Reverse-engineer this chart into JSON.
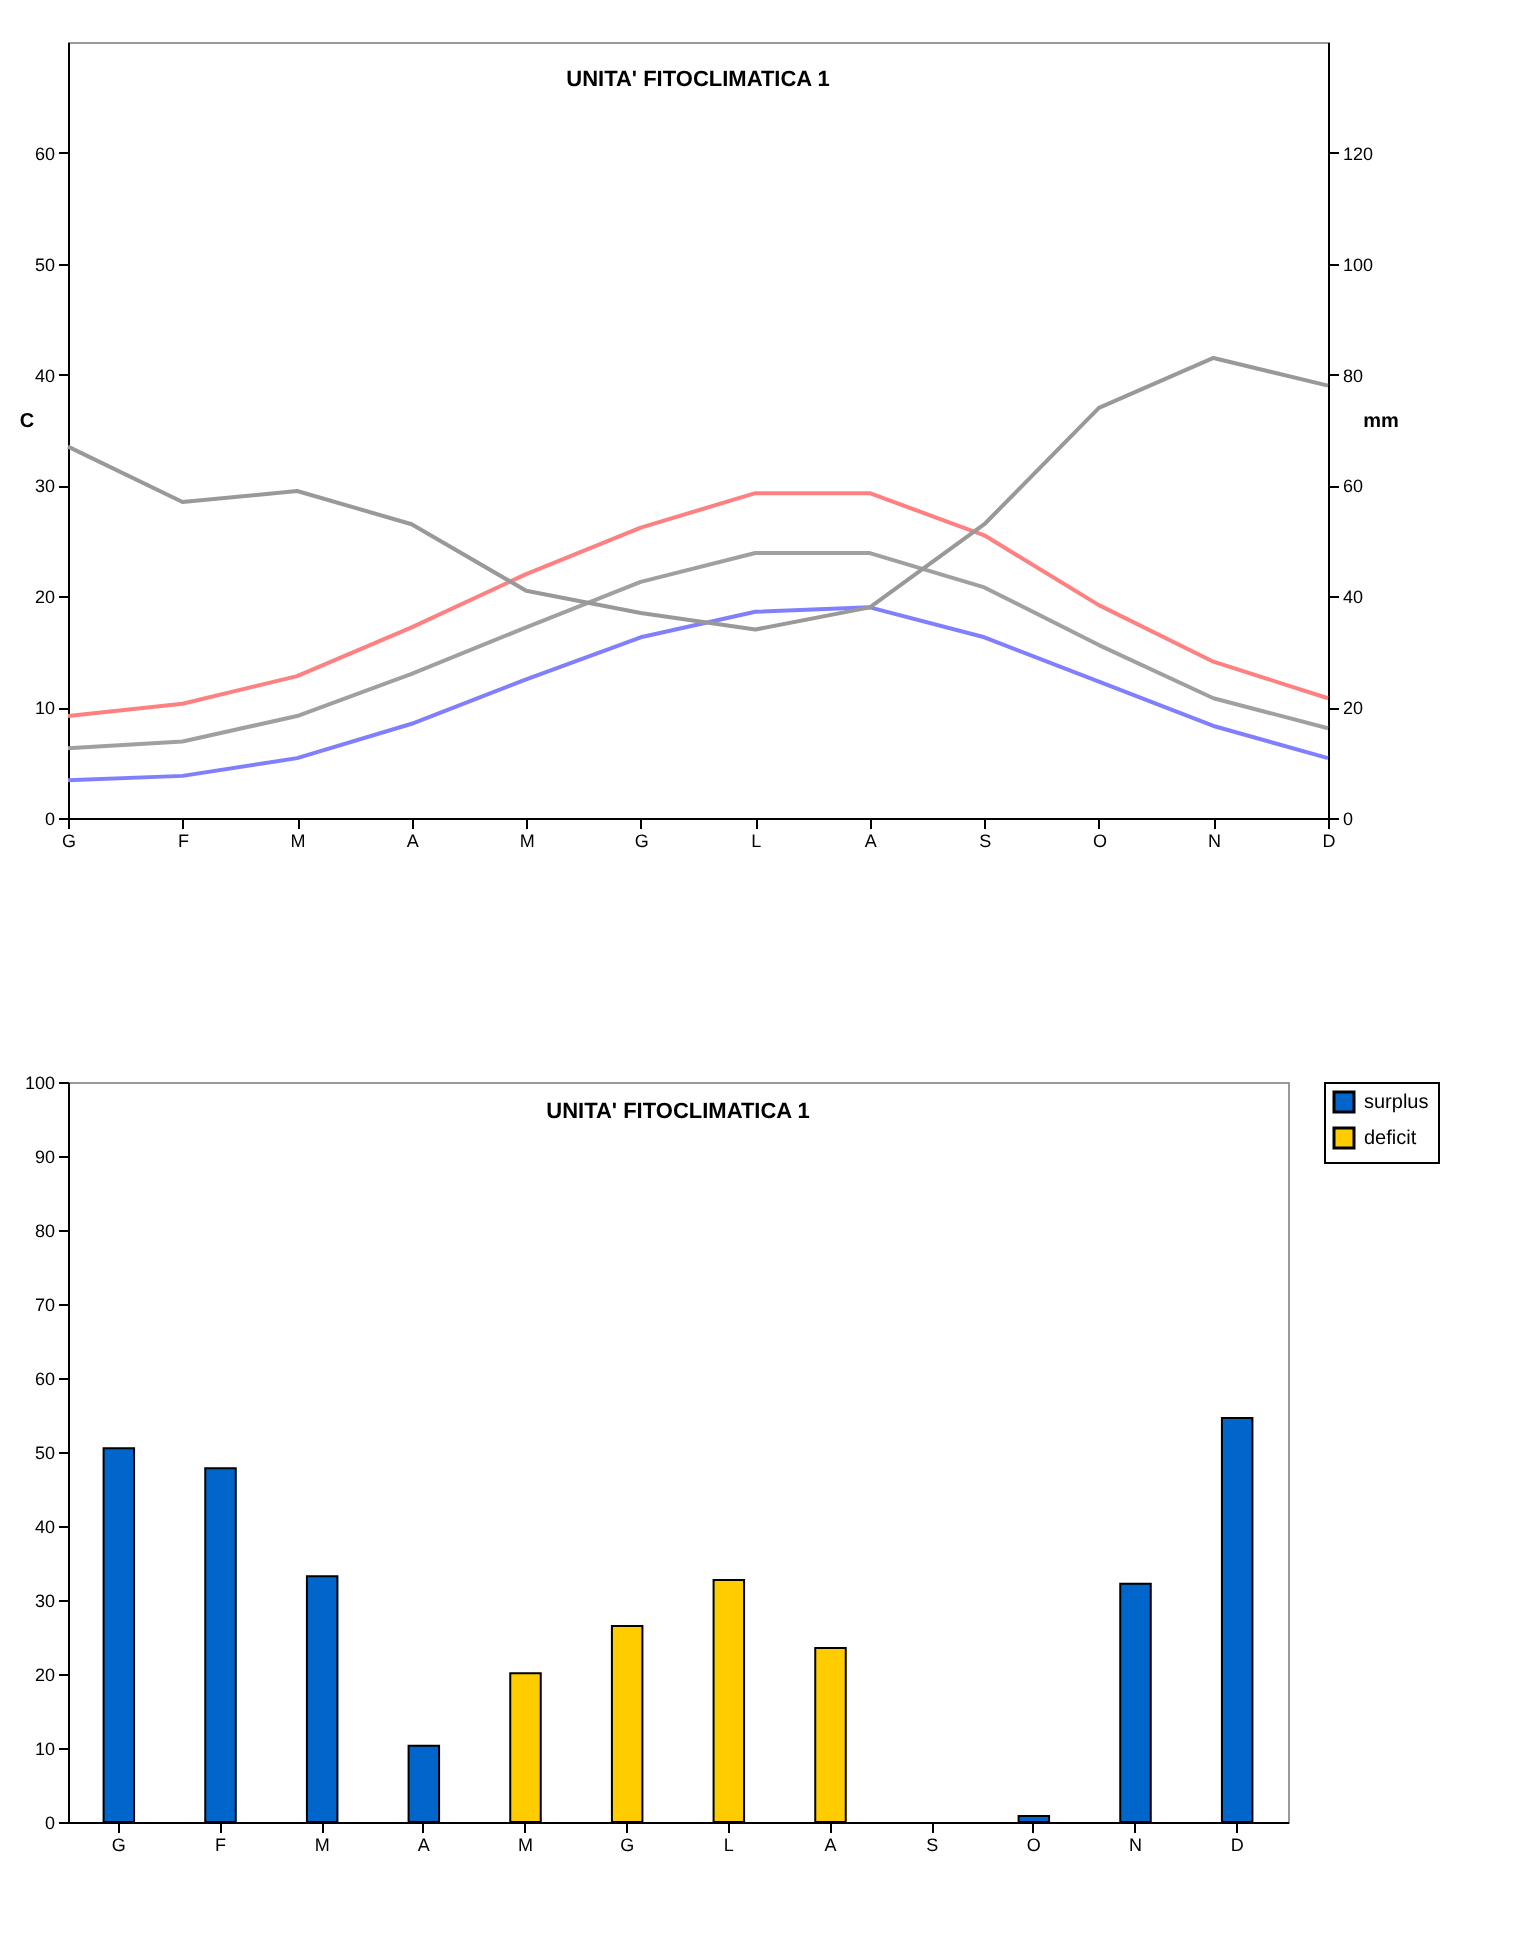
{
  "chart_data": [
    {
      "type": "line",
      "title": "UNITA' FITOCLIMATICA 1",
      "ylabel": "C",
      "y2label": "mm",
      "categories": [
        "G",
        "F",
        "M",
        "A",
        "M",
        "G",
        "L",
        "A",
        "S",
        "O",
        "N",
        "D"
      ],
      "series": [
        {
          "color": "#ff8080",
          "values": [
            9.2,
            10.3,
            12.8,
            17.2,
            22,
            26.2,
            29.3,
            29.3,
            25.5,
            19.2,
            14.1,
            10.8
          ]
        },
        {
          "color": "#a0a0a0",
          "values": [
            6.3,
            6.9,
            9.2,
            13,
            17.2,
            21.3,
            23.9,
            23.9,
            20.8,
            15.6,
            10.8,
            8.1
          ]
        },
        {
          "color": "#8080ff",
          "values": [
            3.4,
            3.8,
            5.4,
            8.5,
            12.5,
            16.3,
            18.6,
            19,
            16.3,
            12.3,
            8.3,
            5.4
          ]
        },
        {
          "color": "#999999",
          "axis": "y2",
          "values": [
            67,
            57,
            59,
            53,
            41,
            37,
            34,
            38,
            53,
            74,
            83,
            78
          ]
        }
      ],
      "ylim": [
        0,
        70
      ],
      "yticks": [
        0,
        10,
        20,
        30,
        40,
        50,
        60
      ],
      "y2lim": [
        0,
        140
      ],
      "y2ticks": [
        0,
        20,
        40,
        60,
        80,
        100,
        120
      ]
    },
    {
      "type": "bar",
      "title": "UNITA' FITOCLIMATICA 1",
      "categories": [
        "G",
        "F",
        "M",
        "A",
        "M",
        "G",
        "L",
        "A",
        "S",
        "O",
        "N",
        "D"
      ],
      "series": [
        {
          "name": "surplus",
          "color": "#0066cc",
          "values": [
            50.5,
            47.8,
            33.2,
            10.3,
            null,
            null,
            null,
            null,
            null,
            0.8,
            32.2,
            54.6
          ]
        },
        {
          "name": "deficit",
          "color": "#ffcc00",
          "values": [
            null,
            null,
            null,
            null,
            20.1,
            26.5,
            32.7,
            23.5,
            null,
            null,
            null,
            null
          ]
        }
      ],
      "ylim": [
        0,
        100
      ],
      "yticks": [
        0,
        10,
        20,
        30,
        40,
        50,
        60,
        70,
        80,
        90,
        100
      ],
      "legend": "top right"
    }
  ]
}
